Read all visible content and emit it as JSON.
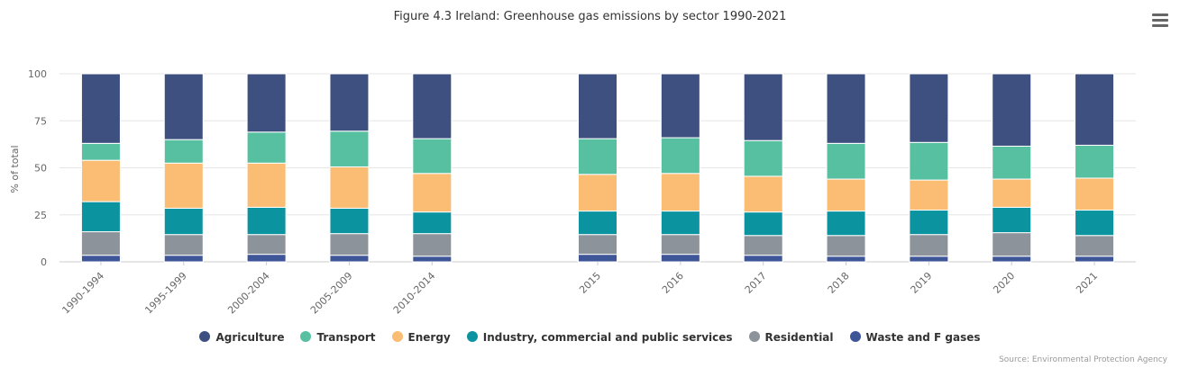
{
  "chart_data": {
    "type": "bar",
    "stacked": true,
    "percent": true,
    "title": "Figure 4.3 Ireland: Greenhouse gas emissions by sector 1990-2021",
    "ylabel": "% of total",
    "ylim": [
      0,
      100
    ],
    "yticks": [
      "0",
      "25",
      "50",
      "75",
      "100"
    ],
    "categories": [
      "1990-1994",
      "1995-1999",
      "2000-2004",
      "2005-2009",
      "2010-2014",
      "",
      "2015",
      "2016",
      "2017",
      "2018",
      "2019",
      "2020",
      "2021"
    ],
    "legend_position": "bottom",
    "series": [
      {
        "name": "Waste and F gases",
        "color": "#3e5697",
        "values": [
          3.5,
          3.5,
          4,
          3.5,
          3,
          null,
          4,
          4,
          3.5,
          3,
          3,
          3,
          3
        ]
      },
      {
        "name": "Residential",
        "color": "#8c939a",
        "values": [
          12.5,
          11,
          10.5,
          11.5,
          12,
          null,
          10.5,
          10.5,
          10.5,
          11,
          11.5,
          12.5,
          11
        ]
      },
      {
        "name": "Industry, commercial and public services",
        "color": "#0c93a0",
        "values": [
          16,
          14,
          14.5,
          13.5,
          11.5,
          null,
          12.5,
          12.5,
          12.5,
          13,
          13,
          13.5,
          13.5
        ]
      },
      {
        "name": "Energy",
        "color": "#fbbc73",
        "values": [
          22,
          24,
          23.5,
          22,
          20.5,
          null,
          19.5,
          20,
          19,
          17,
          16,
          15,
          17
        ]
      },
      {
        "name": "Transport",
        "color": "#57c0a0",
        "values": [
          9,
          12.5,
          16.5,
          19,
          18.5,
          null,
          19,
          19,
          19,
          19,
          20,
          17.5,
          17.5
        ]
      },
      {
        "name": "Agriculture",
        "color": "#3e5080",
        "values": [
          37,
          35,
          31,
          30.5,
          34.5,
          null,
          34.5,
          34,
          35.5,
          37,
          36.5,
          38.5,
          38
        ]
      }
    ],
    "legend_order": [
      "Agriculture",
      "Transport",
      "Energy",
      "Industry, commercial and public services",
      "Residential",
      "Waste and F gases"
    ]
  },
  "credit": "Source: Environmental Protection Agency"
}
